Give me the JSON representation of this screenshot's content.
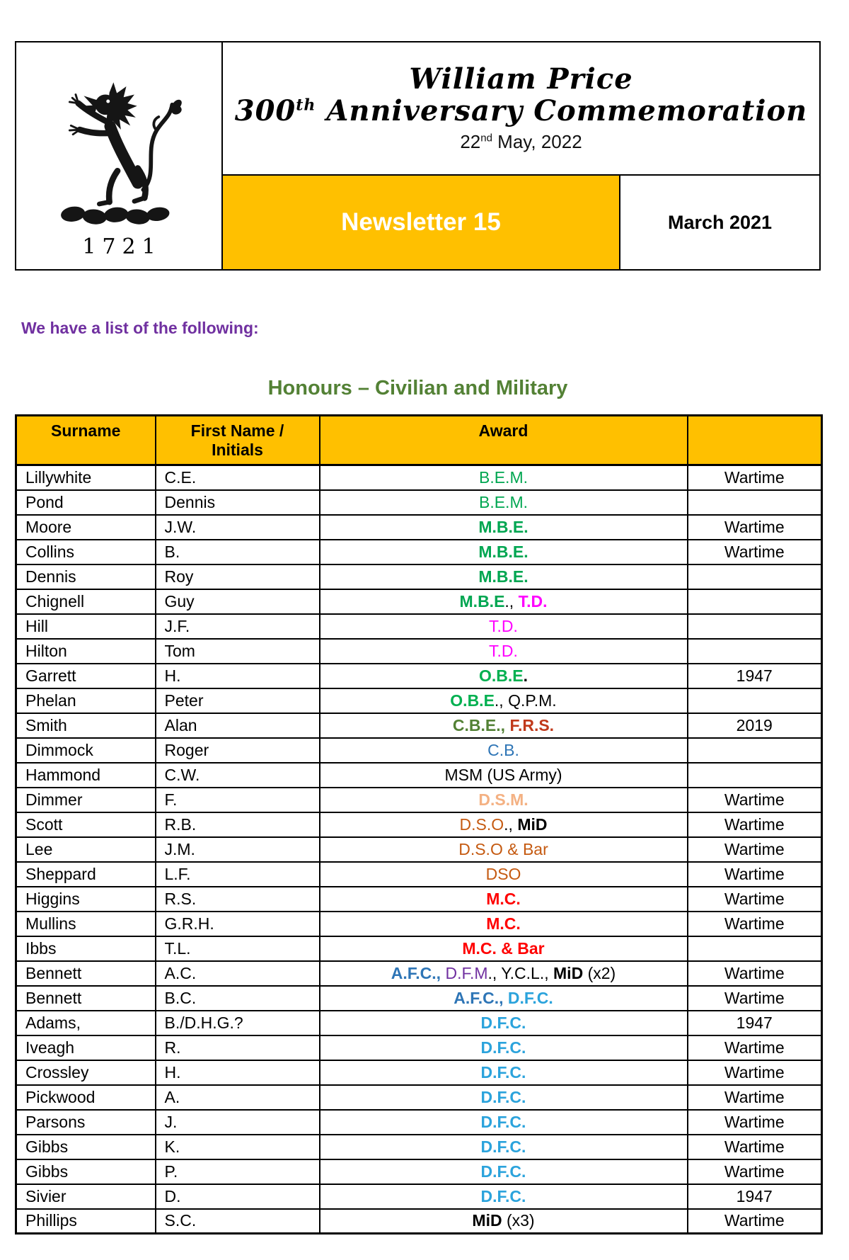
{
  "header": {
    "crest_year": "1721",
    "title_line1": "William Price",
    "title2_pre": "300",
    "title2_sup": "th",
    "title2_post": " Anniversary Commemoration",
    "date_pre": "22",
    "date_sup": "nd",
    "date_post": " May, 2022",
    "newsletter_label": "Newsletter 15",
    "issue_date": "March 2021",
    "band_color": "#FFC000"
  },
  "intro_text": "We have a list of the following:",
  "intro_color": "#7030A0",
  "section_title": "Honours – Civilian and Military",
  "section_title_color": "#538135",
  "colors": {
    "black": "#000000",
    "green": "#00A651",
    "bright_green": "#00B050",
    "olive_green": "#538135",
    "magenta": "#FF00FF",
    "red": "#FF0000",
    "brick_red": "#C0391B",
    "blue": "#2E75B6",
    "light_blue": "#2BA3DC",
    "purple": "#7030A0",
    "salmon": "#F4B183",
    "orange_brown": "#C55A11"
  },
  "table": {
    "header_bg": "#FFC000",
    "headers": {
      "surname": "Surname",
      "first_line1": "First Name /",
      "first_line2": "Initials",
      "award": "Award",
      "note": ""
    },
    "rows": [
      {
        "surname": "Lillywhite",
        "first": "C.E.",
        "award": [
          {
            "text": "B.E.M.",
            "color": "green"
          }
        ],
        "note": "Wartime"
      },
      {
        "surname": "Pond",
        "first": "Dennis",
        "award": [
          {
            "text": "B.E.M.",
            "color": "green"
          }
        ],
        "note": ""
      },
      {
        "surname": "Moore",
        "first": "J.W.",
        "award": [
          {
            "text": "M.B.E.",
            "color": "green",
            "bold": true
          }
        ],
        "note": "Wartime"
      },
      {
        "surname": "Collins",
        "first": "B.",
        "award": [
          {
            "text": "M.B.E.",
            "color": "green",
            "bold": true
          }
        ],
        "note": "Wartime"
      },
      {
        "surname": "Dennis",
        "first": "Roy",
        "award": [
          {
            "text": "M.B.E.",
            "color": "green",
            "bold": true
          }
        ],
        "note": ""
      },
      {
        "surname": "Chignell",
        "first": "Guy",
        "award": [
          {
            "text": "M.B.E",
            "color": "green",
            "bold": true
          },
          {
            "text": "., ",
            "color": "black"
          },
          {
            "text": "T.D.",
            "color": "magenta",
            "bold": true
          }
        ],
        "note": ""
      },
      {
        "surname": "Hill",
        "first": "J.F.",
        "award": [
          {
            "text": "T.D.",
            "color": "magenta"
          }
        ],
        "note": ""
      },
      {
        "surname": "Hilton",
        "first": "Tom",
        "award": [
          {
            "text": "T.D.",
            "color": "magenta"
          }
        ],
        "note": ""
      },
      {
        "surname": "Garrett",
        "first": "H.",
        "award": [
          {
            "text": "O.B.E",
            "color": "bright_green",
            "bold": true
          },
          {
            "text": ".",
            "color": "black",
            "bold": true
          }
        ],
        "note": "1947"
      },
      {
        "surname": "Phelan",
        "first": "Peter",
        "award": [
          {
            "text": "O.B.E",
            "color": "bright_green",
            "bold": true
          },
          {
            "text": "., Q.P.M.",
            "color": "black"
          }
        ],
        "note": ""
      },
      {
        "surname": "Smith",
        "first": "Alan",
        "award": [
          {
            "text": "C.B.E., ",
            "color": "olive_green",
            "bold": true
          },
          {
            "text": "F.R.S.",
            "color": "brick_red",
            "bold": true
          }
        ],
        "note": "2019"
      },
      {
        "surname": "Dimmock",
        "first": "Roger",
        "award": [
          {
            "text": "C.B.",
            "color": "blue"
          }
        ],
        "note": ""
      },
      {
        "surname": "Hammond",
        "first": "C.W.",
        "award": [
          {
            "text": "MSM (US Army)",
            "color": "black"
          }
        ],
        "note": ""
      },
      {
        "surname": "Dimmer",
        "first": "F.",
        "award": [
          {
            "text": "D.S.M.",
            "color": "salmon",
            "bold": true
          }
        ],
        "note": "Wartime"
      },
      {
        "surname": "Scott",
        "first": "R.B.",
        "award": [
          {
            "text": "D.S.O",
            "color": "orange_brown"
          },
          {
            "text": "., ",
            "color": "black"
          },
          {
            "text": "MiD",
            "color": "black",
            "bold": true
          }
        ],
        "note": "Wartime"
      },
      {
        "surname": "Lee",
        "first": "J.M.",
        "award": [
          {
            "text": "D.S.O & Bar",
            "color": "orange_brown"
          }
        ],
        "note": "Wartime"
      },
      {
        "surname": "Sheppard",
        "first": "L.F.",
        "award": [
          {
            "text": "DSO",
            "color": "orange_brown"
          }
        ],
        "note": "Wartime"
      },
      {
        "surname": "Higgins",
        "first": "R.S.",
        "award": [
          {
            "text": "M.C.",
            "color": "red",
            "bold": true
          }
        ],
        "note": "Wartime"
      },
      {
        "surname": "Mullins",
        "first": "G.R.H.",
        "award": [
          {
            "text": "M.C.",
            "color": "red",
            "bold": true
          }
        ],
        "note": "Wartime"
      },
      {
        "surname": "Ibbs",
        "first": "T.L.",
        "award": [
          {
            "text": "M.C. & Bar",
            "color": "red",
            "bold": true
          }
        ],
        "note": ""
      },
      {
        "surname": "Bennett",
        "first": "A.C.",
        "award": [
          {
            "text": "A.F.C., ",
            "color": "blue",
            "bold": true
          },
          {
            "text": "D.F.M",
            "color": "purple"
          },
          {
            "text": "., Y.C.L., ",
            "color": "black"
          },
          {
            "text": "MiD",
            "color": "black",
            "bold": true
          },
          {
            "text": " (x2)",
            "color": "black"
          }
        ],
        "note": "Wartime"
      },
      {
        "surname": "Bennett",
        "first": "B.C.",
        "award": [
          {
            "text": "A.F.C., ",
            "color": "blue",
            "bold": true
          },
          {
            "text": "D.F.C.",
            "color": "light_blue",
            "bold": true
          }
        ],
        "note": "Wartime"
      },
      {
        "surname": "Adams,",
        "first": "B./D.H.G.?",
        "award": [
          {
            "text": "D.F.C.",
            "color": "light_blue",
            "bold": true
          }
        ],
        "note": "1947"
      },
      {
        "surname": "Iveagh",
        "first": "R.",
        "award": [
          {
            "text": "D.F.C.",
            "color": "light_blue",
            "bold": true
          }
        ],
        "note": "Wartime"
      },
      {
        "surname": "Crossley",
        "first": "H.",
        "award": [
          {
            "text": "D.F.C.",
            "color": "light_blue",
            "bold": true
          }
        ],
        "note": "Wartime"
      },
      {
        "surname": "Pickwood",
        "first": "A.",
        "award": [
          {
            "text": "D.F.C.",
            "color": "light_blue",
            "bold": true
          }
        ],
        "note": "Wartime"
      },
      {
        "surname": "Parsons",
        "first": "J.",
        "award": [
          {
            "text": "D.F.C.",
            "color": "light_blue",
            "bold": true
          }
        ],
        "note": "Wartime"
      },
      {
        "surname": "Gibbs",
        "first": "K.",
        "award": [
          {
            "text": "D.F.C.",
            "color": "light_blue",
            "bold": true
          }
        ],
        "note": "Wartime"
      },
      {
        "surname": "Gibbs",
        "first": "P.",
        "award": [
          {
            "text": "D.F.C.",
            "color": "light_blue",
            "bold": true
          }
        ],
        "note": "Wartime"
      },
      {
        "surname": "Sivier",
        "first": "D.",
        "award": [
          {
            "text": "D.F.C.",
            "color": "light_blue",
            "bold": true
          }
        ],
        "note": "1947"
      },
      {
        "surname": "Phillips",
        "first": "S.C.",
        "award": [
          {
            "text": "MiD",
            "color": "black",
            "bold": true
          },
          {
            "text": " (x3)",
            "color": "black"
          }
        ],
        "note": "Wartime"
      }
    ]
  }
}
